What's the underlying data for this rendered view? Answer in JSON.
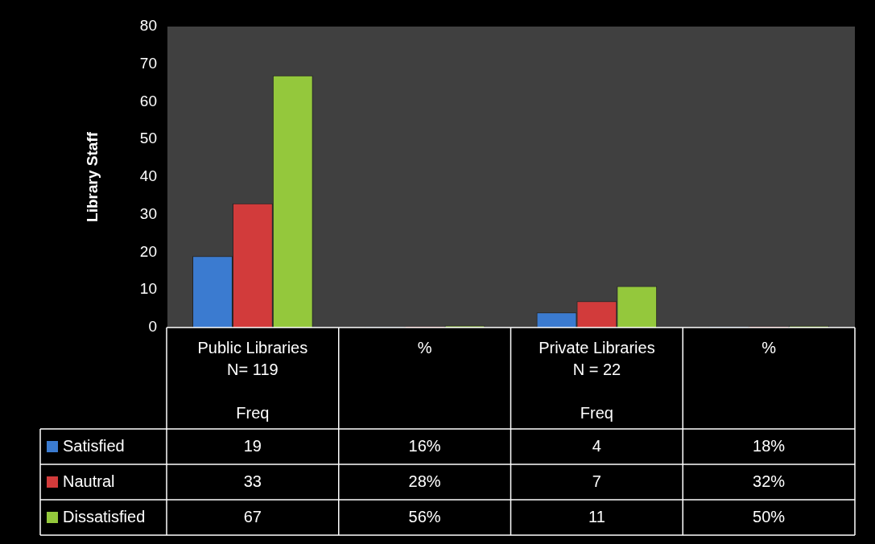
{
  "chart_data": {
    "type": "bar",
    "ylabel": "Library Staff",
    "categories": [
      "Public Libraries\nN= 119\n\nFreq",
      "%",
      "Private Libraries\nN = 22\n\nFreq",
      "%"
    ],
    "series": [
      {
        "name": "Satisfied",
        "color": "#3b7bd0",
        "values": [
          19,
          0.16,
          4,
          0.18
        ],
        "value_labels": [
          "19",
          "16%",
          "4",
          "18%"
        ]
      },
      {
        "name": "Nautral",
        "color": "#d23b3b",
        "values": [
          33,
          0.28,
          7,
          0.32
        ],
        "value_labels": [
          "33",
          "28%",
          "7",
          "32%"
        ]
      },
      {
        "name": "Dissatisfied",
        "color": "#94c83c",
        "values": [
          67,
          0.56,
          11,
          0.5
        ],
        "value_labels": [
          "67",
          "56%",
          "11",
          "50%"
        ]
      }
    ],
    "ylim": [
      0,
      80
    ],
    "yticks": [
      0,
      10,
      20,
      30,
      40,
      50,
      60,
      70,
      80
    ],
    "grid": false,
    "legend": "bottom left"
  }
}
